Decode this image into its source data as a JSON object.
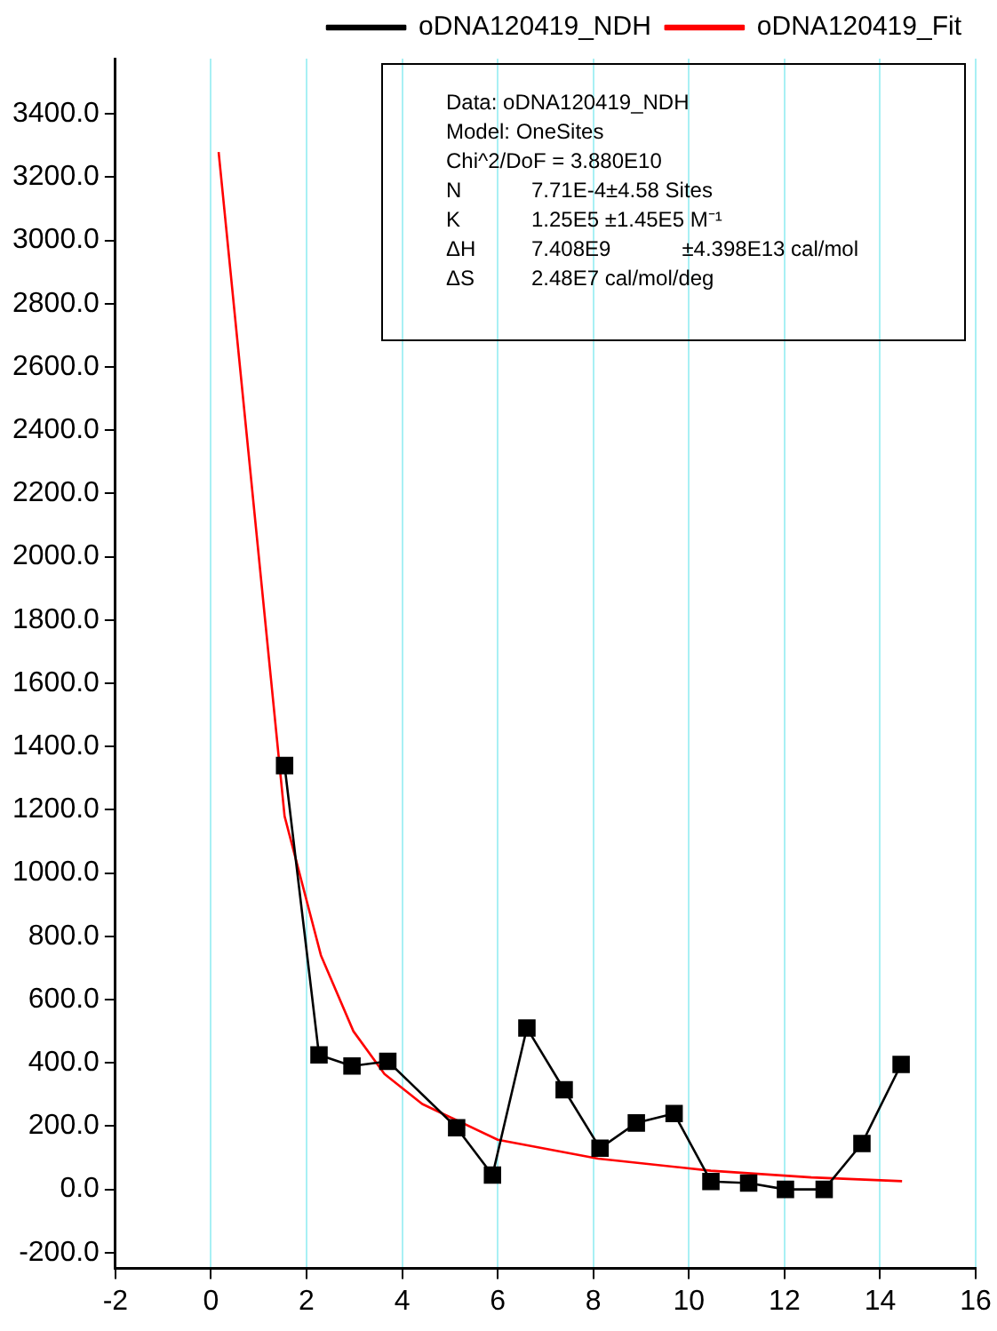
{
  "chart_data": {
    "type": "line",
    "series": [
      {
        "name": "oDNA120419_NDH",
        "color": "#000000",
        "marker": "square",
        "line_style": "solid",
        "x": [
          1.54,
          2.26,
          2.95,
          3.7,
          5.14,
          5.89,
          6.61,
          7.39,
          8.14,
          8.9,
          9.69,
          10.46,
          11.25,
          12.02,
          12.83,
          13.62,
          14.44
        ],
        "values": [
          1340,
          425,
          390,
          405,
          195,
          45,
          510,
          315,
          130,
          210,
          240,
          25,
          20,
          0,
          0,
          145,
          395
        ]
      },
      {
        "name": "oDNA120419_Fit",
        "color": "#ff0000",
        "marker": "none",
        "line_style": "solid",
        "x": [
          0.16,
          1.54,
          2.3,
          2.98,
          3.63,
          4.42,
          6.0,
          8.1,
          10.46,
          12.56,
          14.46
        ],
        "values": [
          3280,
          1180,
          740,
          500,
          365,
          270,
          157,
          97,
          59,
          38,
          26
        ]
      }
    ],
    "xlim": [
      -2,
      16
    ],
    "xticks": [
      -2,
      0,
      2,
      4,
      6,
      8,
      10,
      12,
      14,
      16
    ],
    "ylim": [
      -250,
      3575
    ],
    "yticks": [
      {
        "value": -200,
        "label": "-200.0"
      },
      {
        "value": 0,
        "label": "0.0"
      },
      {
        "value": 200,
        "label": "200.0"
      },
      {
        "value": 400,
        "label": "400.0"
      },
      {
        "value": 600,
        "label": "600.0"
      },
      {
        "value": 800,
        "label": "800.0"
      },
      {
        "value": 1000,
        "label": "1000.0"
      },
      {
        "value": 1200,
        "label": "1200.0"
      },
      {
        "value": 1400,
        "label": "1400.0"
      },
      {
        "value": 1600,
        "label": "1600.0"
      },
      {
        "value": 1800,
        "label": "1800.0"
      },
      {
        "value": 2000,
        "label": "2000.0"
      },
      {
        "value": 2200,
        "label": "2200.0"
      },
      {
        "value": 2400,
        "label": "2400.0"
      },
      {
        "value": 2600,
        "label": "2600.0"
      },
      {
        "value": 2800,
        "label": "2800.0"
      },
      {
        "value": 3000,
        "label": "3000.0"
      },
      {
        "value": 3200,
        "label": "3200.0"
      },
      {
        "value": 3400,
        "label": "3400.0"
      }
    ],
    "grid": "x",
    "legend": "top right",
    "annotations": [
      "Data: oDNA120419_NDH",
      "Model: OneSites",
      "Chi^2/DoF = 3.880E10",
      "N\t7.71E-4±4.58 Sites",
      "K\t1.25E5 ±1.45E5 M⁻¹",
      "ΔH\t7.408E9            ±4.398E13 cal/mol",
      "ΔS\t2.48E7 cal/mol/deg"
    ]
  }
}
